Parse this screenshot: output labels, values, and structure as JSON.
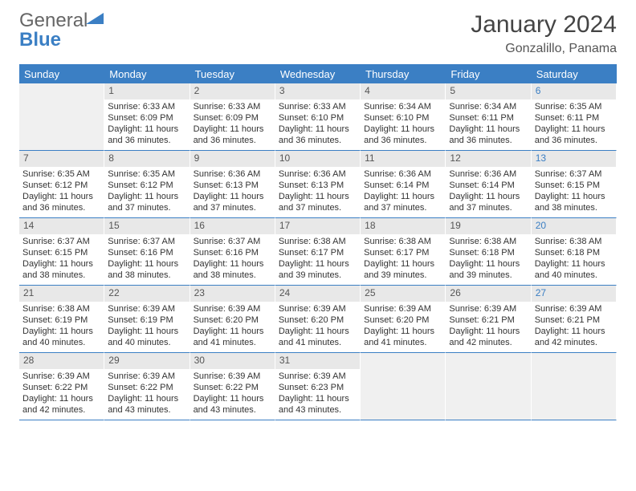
{
  "brand": {
    "part1": "General",
    "part2": "Blue"
  },
  "title": "January 2024",
  "location": "Gonzalillo, Panama",
  "colors": {
    "header_bg": "#3b7fc4",
    "header_fg": "#ffffff",
    "daynum_bg": "#e8e8e8",
    "sat_fg": "#3b7fc4",
    "border": "#3b7fc4",
    "text": "#333333"
  },
  "layout": {
    "cols": 7,
    "rows": 5,
    "start_day_index": 1
  },
  "weekdays": [
    "Sunday",
    "Monday",
    "Tuesday",
    "Wednesday",
    "Thursday",
    "Friday",
    "Saturday"
  ],
  "days": [
    {
      "n": 1,
      "sr": "6:33 AM",
      "ss": "6:09 PM",
      "dl": "11 hours and 36 minutes."
    },
    {
      "n": 2,
      "sr": "6:33 AM",
      "ss": "6:09 PM",
      "dl": "11 hours and 36 minutes."
    },
    {
      "n": 3,
      "sr": "6:33 AM",
      "ss": "6:10 PM",
      "dl": "11 hours and 36 minutes."
    },
    {
      "n": 4,
      "sr": "6:34 AM",
      "ss": "6:10 PM",
      "dl": "11 hours and 36 minutes."
    },
    {
      "n": 5,
      "sr": "6:34 AM",
      "ss": "6:11 PM",
      "dl": "11 hours and 36 minutes."
    },
    {
      "n": 6,
      "sr": "6:35 AM",
      "ss": "6:11 PM",
      "dl": "11 hours and 36 minutes."
    },
    {
      "n": 7,
      "sr": "6:35 AM",
      "ss": "6:12 PM",
      "dl": "11 hours and 36 minutes."
    },
    {
      "n": 8,
      "sr": "6:35 AM",
      "ss": "6:12 PM",
      "dl": "11 hours and 37 minutes."
    },
    {
      "n": 9,
      "sr": "6:36 AM",
      "ss": "6:13 PM",
      "dl": "11 hours and 37 minutes."
    },
    {
      "n": 10,
      "sr": "6:36 AM",
      "ss": "6:13 PM",
      "dl": "11 hours and 37 minutes."
    },
    {
      "n": 11,
      "sr": "6:36 AM",
      "ss": "6:14 PM",
      "dl": "11 hours and 37 minutes."
    },
    {
      "n": 12,
      "sr": "6:36 AM",
      "ss": "6:14 PM",
      "dl": "11 hours and 37 minutes."
    },
    {
      "n": 13,
      "sr": "6:37 AM",
      "ss": "6:15 PM",
      "dl": "11 hours and 38 minutes."
    },
    {
      "n": 14,
      "sr": "6:37 AM",
      "ss": "6:15 PM",
      "dl": "11 hours and 38 minutes."
    },
    {
      "n": 15,
      "sr": "6:37 AM",
      "ss": "6:16 PM",
      "dl": "11 hours and 38 minutes."
    },
    {
      "n": 16,
      "sr": "6:37 AM",
      "ss": "6:16 PM",
      "dl": "11 hours and 38 minutes."
    },
    {
      "n": 17,
      "sr": "6:38 AM",
      "ss": "6:17 PM",
      "dl": "11 hours and 39 minutes."
    },
    {
      "n": 18,
      "sr": "6:38 AM",
      "ss": "6:17 PM",
      "dl": "11 hours and 39 minutes."
    },
    {
      "n": 19,
      "sr": "6:38 AM",
      "ss": "6:18 PM",
      "dl": "11 hours and 39 minutes."
    },
    {
      "n": 20,
      "sr": "6:38 AM",
      "ss": "6:18 PM",
      "dl": "11 hours and 40 minutes."
    },
    {
      "n": 21,
      "sr": "6:38 AM",
      "ss": "6:19 PM",
      "dl": "11 hours and 40 minutes."
    },
    {
      "n": 22,
      "sr": "6:39 AM",
      "ss": "6:19 PM",
      "dl": "11 hours and 40 minutes."
    },
    {
      "n": 23,
      "sr": "6:39 AM",
      "ss": "6:20 PM",
      "dl": "11 hours and 41 minutes."
    },
    {
      "n": 24,
      "sr": "6:39 AM",
      "ss": "6:20 PM",
      "dl": "11 hours and 41 minutes."
    },
    {
      "n": 25,
      "sr": "6:39 AM",
      "ss": "6:20 PM",
      "dl": "11 hours and 41 minutes."
    },
    {
      "n": 26,
      "sr": "6:39 AM",
      "ss": "6:21 PM",
      "dl": "11 hours and 42 minutes."
    },
    {
      "n": 27,
      "sr": "6:39 AM",
      "ss": "6:21 PM",
      "dl": "11 hours and 42 minutes."
    },
    {
      "n": 28,
      "sr": "6:39 AM",
      "ss": "6:22 PM",
      "dl": "11 hours and 42 minutes."
    },
    {
      "n": 29,
      "sr": "6:39 AM",
      "ss": "6:22 PM",
      "dl": "11 hours and 43 minutes."
    },
    {
      "n": 30,
      "sr": "6:39 AM",
      "ss": "6:22 PM",
      "dl": "11 hours and 43 minutes."
    },
    {
      "n": 31,
      "sr": "6:39 AM",
      "ss": "6:23 PM",
      "dl": "11 hours and 43 minutes."
    }
  ],
  "labels": {
    "sunrise": "Sunrise:",
    "sunset": "Sunset:",
    "daylight": "Daylight:"
  }
}
